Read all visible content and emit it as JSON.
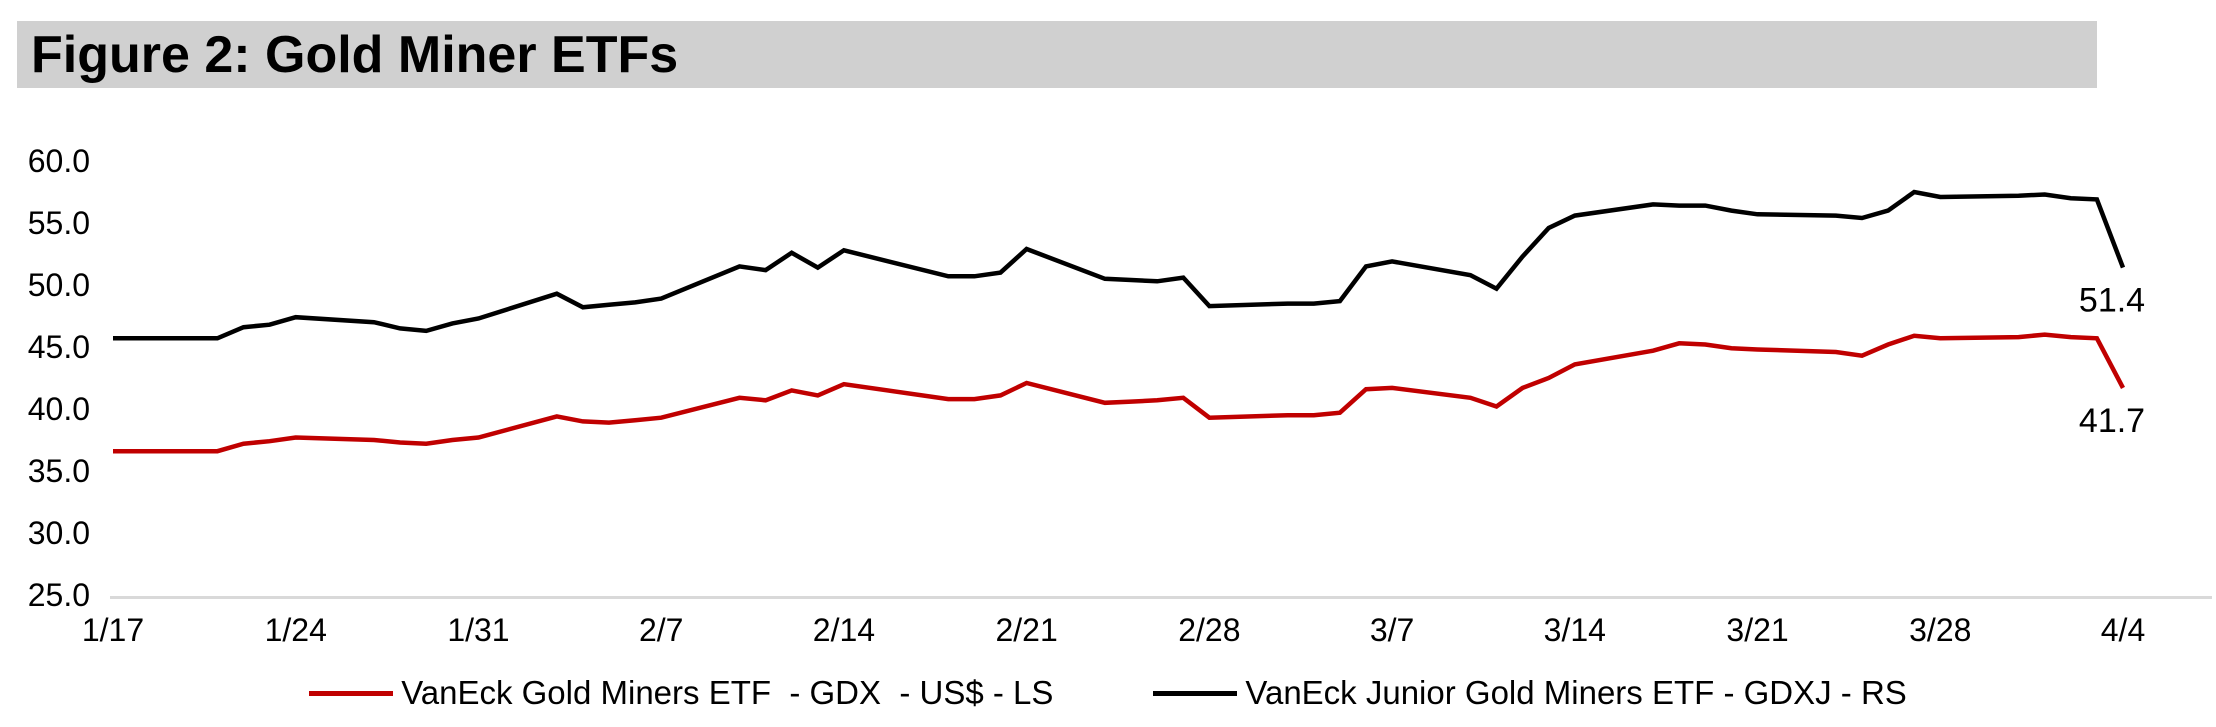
{
  "title": "Figure 2: Gold Miner ETFs",
  "colors": {
    "gdx_line": "#C00000",
    "gdxj_line": "#000000",
    "title_banner": "#D0D0D0",
    "axis_line": "#D9D9D9",
    "text": "#000000"
  },
  "chart_data": {
    "type": "line",
    "title": "Figure 2: Gold Miner ETFs",
    "xlabel": "",
    "ylabel": "",
    "ylim": [
      25.0,
      60.0
    ],
    "grid": false,
    "legend_position": "bottom",
    "y_tick_labels": [
      "60.0",
      "55.0",
      "50.0",
      "45.0",
      "40.0",
      "35.0",
      "30.0",
      "25.0"
    ],
    "x_tick_labels": [
      "1/17",
      "1/24",
      "1/31",
      "2/7",
      "2/14",
      "2/21",
      "2/28",
      "3/7",
      "3/14",
      "3/21",
      "3/28",
      "4/4"
    ],
    "x": [
      "1/17",
      "1/21",
      "1/22",
      "1/23",
      "1/24",
      "1/27",
      "1/28",
      "1/29",
      "1/30",
      "1/31",
      "2/3",
      "2/4",
      "2/5",
      "2/6",
      "2/7",
      "2/10",
      "2/11",
      "2/12",
      "2/13",
      "2/14",
      "2/18",
      "2/19",
      "2/20",
      "2/21",
      "2/24",
      "2/25",
      "2/26",
      "2/27",
      "2/28",
      "3/3",
      "3/4",
      "3/5",
      "3/6",
      "3/7",
      "3/10",
      "3/11",
      "3/12",
      "3/13",
      "3/14",
      "3/17",
      "3/18",
      "3/19",
      "3/20",
      "3/21",
      "3/24",
      "3/25",
      "3/26",
      "3/27",
      "3/28",
      "3/31",
      "4/1",
      "4/2",
      "4/3",
      "4/4"
    ],
    "series": [
      {
        "name": "VanEck Gold Miners ETF  - GDX  - US$ - LS",
        "color": "#C00000",
        "end_label": "41.7",
        "values": [
          36.6,
          36.6,
          37.2,
          37.4,
          37.7,
          37.5,
          37.3,
          37.2,
          37.5,
          37.7,
          39.4,
          39.0,
          38.9,
          39.1,
          39.3,
          40.9,
          40.7,
          41.5,
          41.1,
          42.0,
          40.8,
          40.8,
          41.1,
          42.1,
          40.5,
          40.6,
          40.7,
          40.9,
          39.3,
          39.5,
          39.5,
          39.7,
          41.6,
          41.7,
          40.9,
          40.2,
          41.7,
          42.5,
          43.6,
          44.7,
          45.3,
          45.2,
          44.9,
          44.8,
          44.6,
          44.3,
          45.2,
          45.9,
          45.7,
          45.8,
          46.0,
          45.8,
          45.7,
          41.7
        ]
      },
      {
        "name": "VanEck Junior Gold Miners ETF - GDXJ - RS",
        "color": "#000000",
        "end_label": "51.4",
        "values": [
          45.7,
          45.7,
          46.6,
          46.8,
          47.4,
          47.0,
          46.5,
          46.3,
          46.9,
          47.3,
          49.3,
          48.2,
          48.4,
          48.6,
          48.9,
          51.5,
          51.2,
          52.6,
          51.4,
          52.8,
          50.7,
          50.7,
          51.0,
          52.9,
          50.5,
          50.4,
          50.3,
          50.6,
          48.3,
          48.5,
          48.5,
          48.7,
          51.5,
          51.9,
          50.8,
          49.7,
          52.3,
          54.6,
          55.6,
          56.5,
          56.4,
          56.4,
          56.0,
          55.7,
          55.6,
          55.4,
          56.0,
          57.5,
          57.1,
          57.2,
          57.3,
          57.0,
          56.9,
          51.4
        ]
      }
    ]
  }
}
